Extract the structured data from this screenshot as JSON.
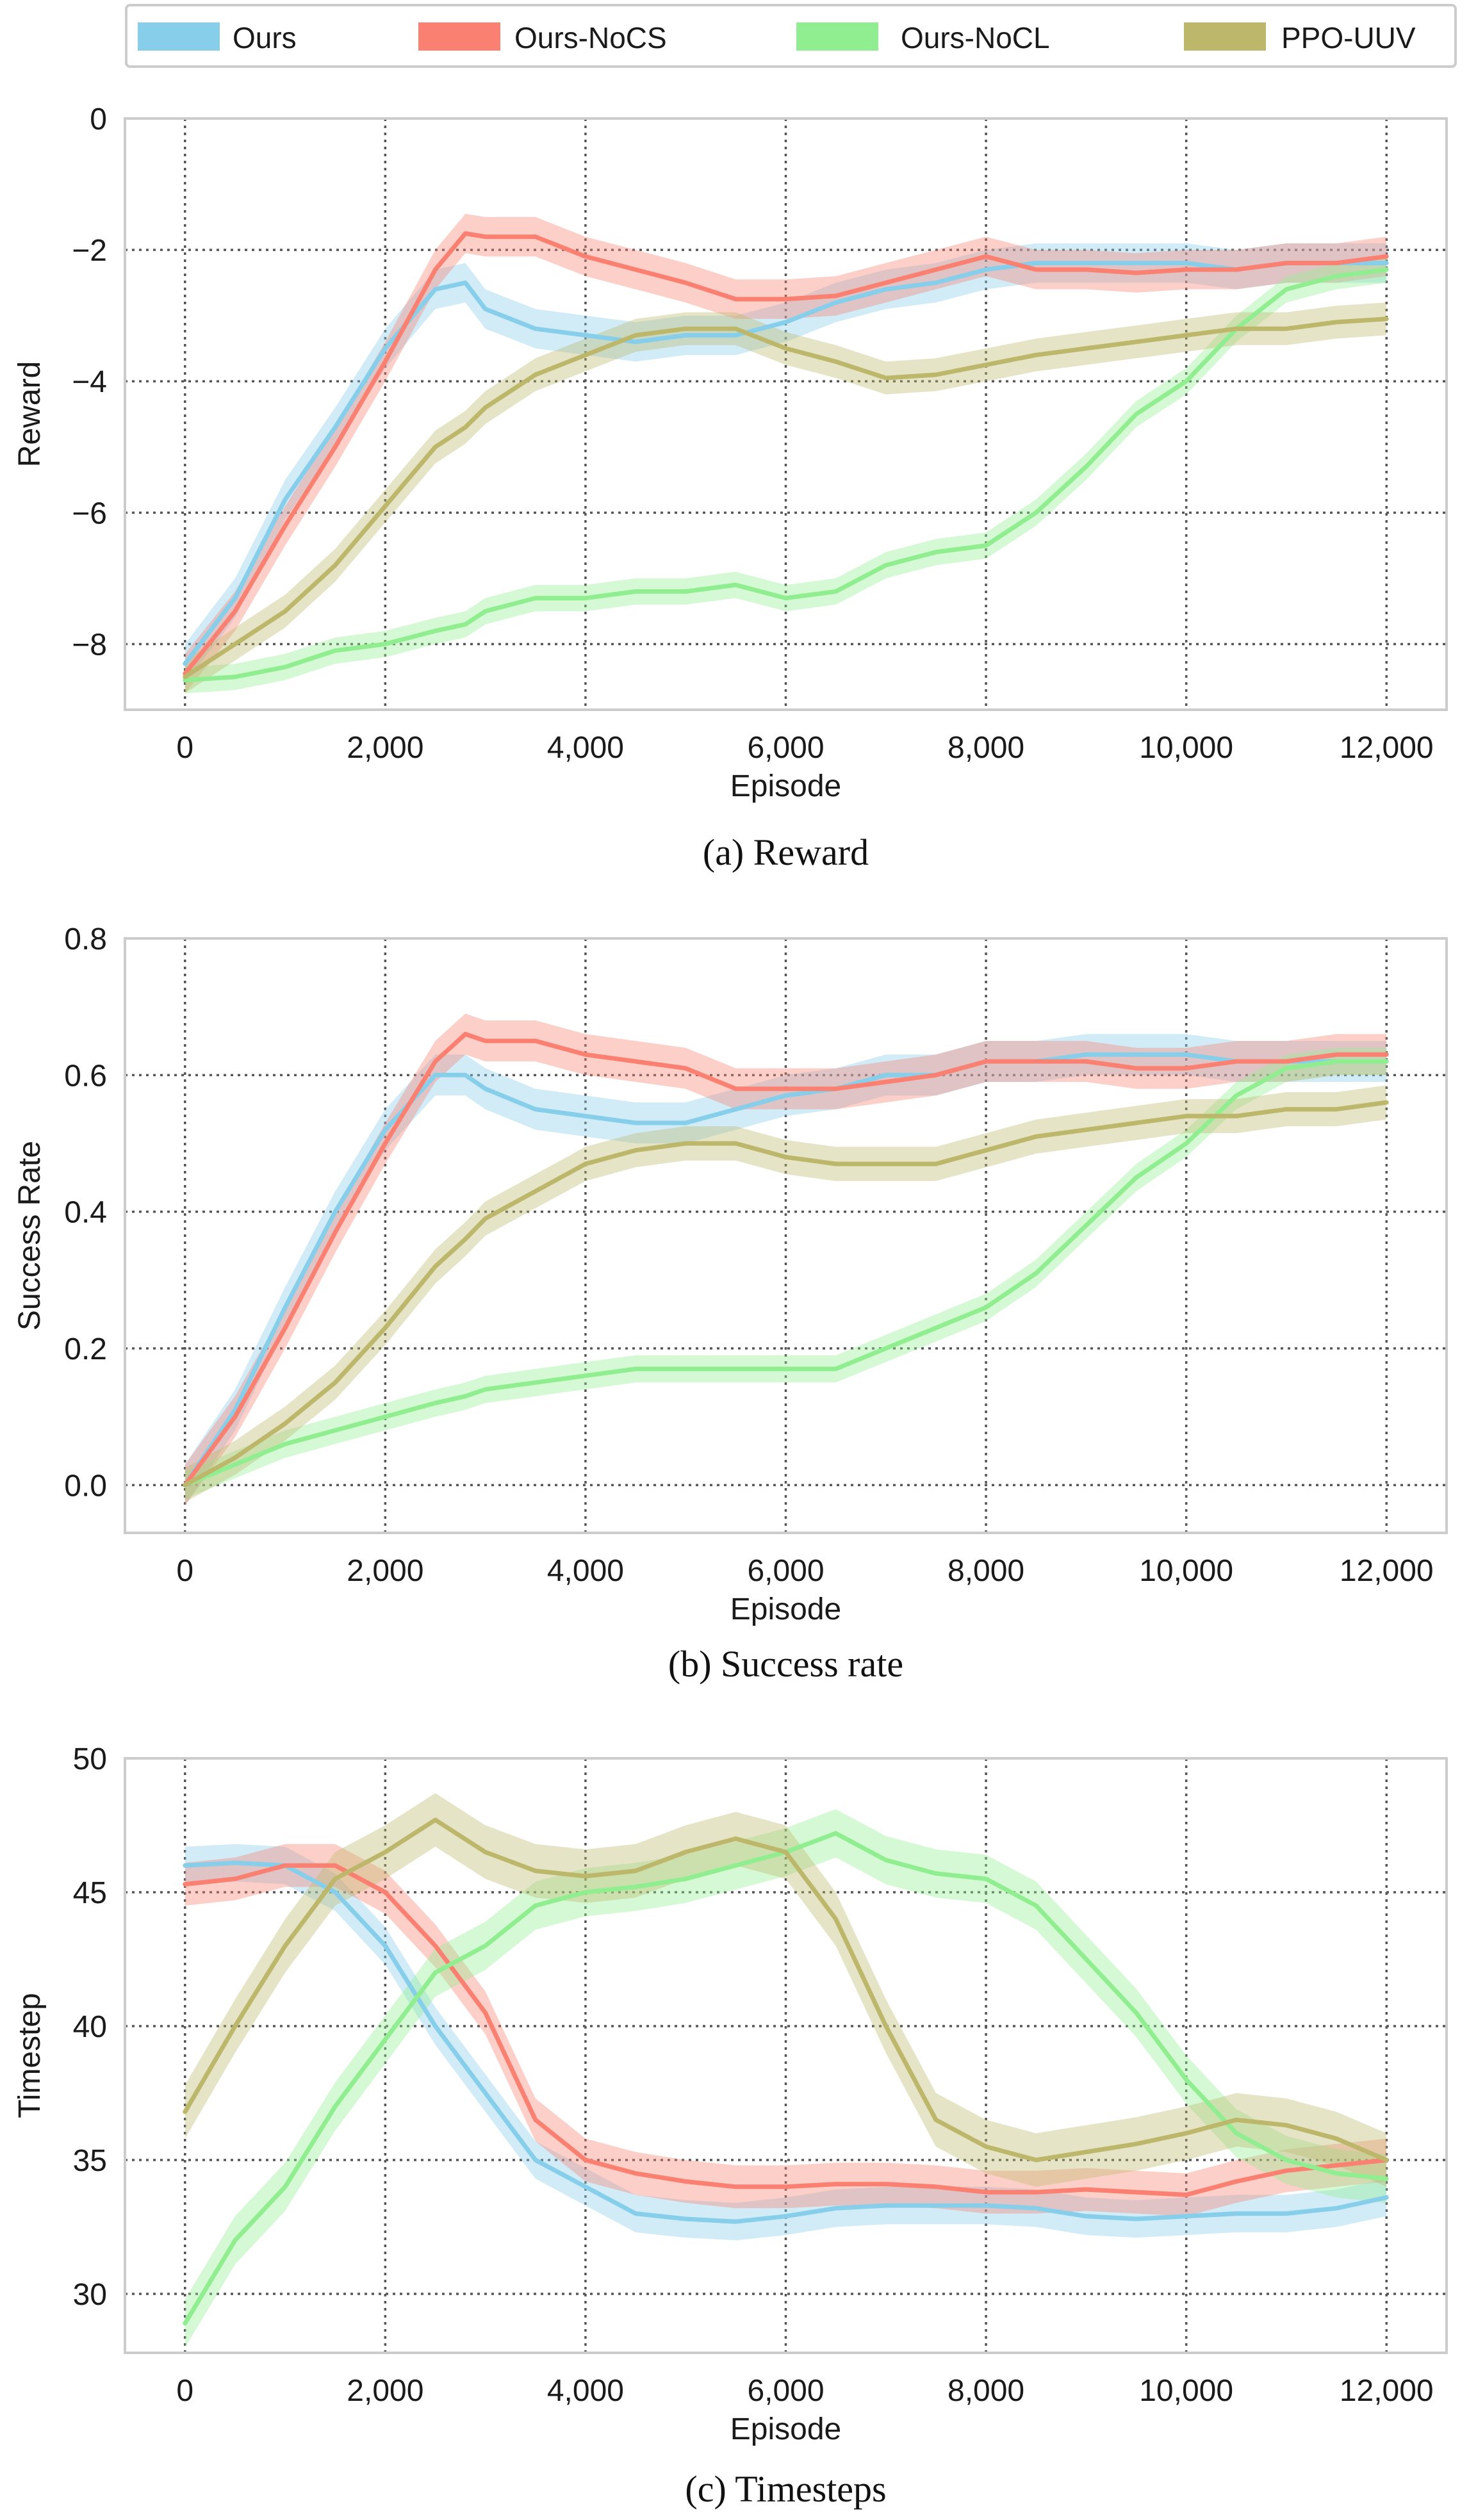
{
  "legend": {
    "entries": [
      {
        "name": "Ours",
        "color": "#87CEEB"
      },
      {
        "name": "Ours-NoCS",
        "color": "#FA8072"
      },
      {
        "name": "Ours-NoCL",
        "color": "#90EE90"
      },
      {
        "name": "PPO-UUV",
        "color": "#BDB76B"
      }
    ]
  },
  "chart_data": [
    {
      "type": "line",
      "title": "(a) Reward",
      "xlabel": "Episode",
      "ylabel": "Reward",
      "xlim": [
        -600,
        12600
      ],
      "ylim": [
        -9,
        0
      ],
      "xticks": [
        0,
        2000,
        4000,
        6000,
        8000,
        10000,
        12000
      ],
      "xtick_labels": [
        "0",
        "2,000",
        "4,000",
        "6,000",
        "8,000",
        "10,000",
        "12,000"
      ],
      "yticks": [
        0,
        -2,
        -4,
        -6,
        -8
      ],
      "ytick_labels": [
        "0",
        "−2",
        "−4",
        "−6",
        "−8"
      ],
      "grid": true,
      "x": [
        0,
        500,
        1000,
        1500,
        2000,
        2500,
        2800,
        3000,
        3500,
        4000,
        4500,
        5000,
        5500,
        6000,
        6500,
        7000,
        7500,
        8000,
        8500,
        9000,
        9500,
        10000,
        10500,
        11000,
        11500,
        12000
      ],
      "series": [
        {
          "name": "Ours",
          "band": 0.3,
          "values": [
            -8.3,
            -7.3,
            -5.8,
            -4.7,
            -3.5,
            -2.6,
            -2.5,
            -2.9,
            -3.2,
            -3.3,
            -3.4,
            -3.3,
            -3.3,
            -3.1,
            -2.8,
            -2.6,
            -2.5,
            -2.3,
            -2.2,
            -2.2,
            -2.2,
            -2.2,
            -2.3,
            -2.2,
            -2.2,
            -2.2
          ]
        },
        {
          "name": "Ours-NoCS",
          "band": 0.3,
          "values": [
            -8.45,
            -7.5,
            -6.2,
            -5.0,
            -3.7,
            -2.3,
            -1.75,
            -1.8,
            -1.8,
            -2.1,
            -2.3,
            -2.5,
            -2.75,
            -2.75,
            -2.7,
            -2.5,
            -2.3,
            -2.1,
            -2.3,
            -2.3,
            -2.35,
            -2.3,
            -2.3,
            -2.2,
            -2.2,
            -2.1
          ]
        },
        {
          "name": "Ours-NoCL",
          "band": 0.2,
          "values": [
            -8.55,
            -8.5,
            -8.35,
            -8.1,
            -8.0,
            -7.8,
            -7.7,
            -7.5,
            -7.3,
            -7.3,
            -7.2,
            -7.2,
            -7.1,
            -7.3,
            -7.2,
            -6.8,
            -6.6,
            -6.5,
            -6.0,
            -5.3,
            -4.5,
            -4.0,
            -3.2,
            -2.6,
            -2.4,
            -2.3
          ]
        },
        {
          "name": "PPO-UUV",
          "band": 0.25,
          "values": [
            -8.5,
            -8.0,
            -7.5,
            -6.8,
            -5.9,
            -5.0,
            -4.7,
            -4.4,
            -3.9,
            -3.6,
            -3.3,
            -3.2,
            -3.2,
            -3.5,
            -3.7,
            -3.95,
            -3.9,
            -3.75,
            -3.6,
            -3.5,
            -3.4,
            -3.3,
            -3.2,
            -3.2,
            -3.1,
            -3.05
          ]
        }
      ]
    },
    {
      "type": "line",
      "title": "(b) Success rate",
      "xlabel": "Episode",
      "ylabel": "Success Rate",
      "xlim": [
        -600,
        12600
      ],
      "ylim": [
        -0.07,
        0.8
      ],
      "xticks": [
        0,
        2000,
        4000,
        6000,
        8000,
        10000,
        12000
      ],
      "xtick_labels": [
        "0",
        "2,000",
        "4,000",
        "6,000",
        "8,000",
        "10,000",
        "12,000"
      ],
      "yticks": [
        0.0,
        0.2,
        0.4,
        0.6,
        0.8
      ],
      "ytick_labels": [
        "0.0",
        "0.2",
        "0.4",
        "0.6",
        "0.8"
      ],
      "grid": true,
      "x": [
        0,
        500,
        1000,
        1500,
        2000,
        2500,
        2800,
        3000,
        3500,
        4000,
        4500,
        5000,
        5500,
        6000,
        6500,
        7000,
        7500,
        8000,
        8500,
        9000,
        9500,
        10000,
        10500,
        11000,
        11500,
        12000
      ],
      "series": [
        {
          "name": "Ours",
          "band": 0.03,
          "values": [
            0.0,
            0.11,
            0.26,
            0.4,
            0.52,
            0.6,
            0.6,
            0.58,
            0.55,
            0.54,
            0.53,
            0.53,
            0.55,
            0.57,
            0.58,
            0.6,
            0.6,
            0.62,
            0.62,
            0.63,
            0.63,
            0.63,
            0.62,
            0.62,
            0.62,
            0.62
          ]
        },
        {
          "name": "Ours-NoCS",
          "band": 0.03,
          "values": [
            0.0,
            0.1,
            0.23,
            0.37,
            0.5,
            0.62,
            0.66,
            0.65,
            0.65,
            0.63,
            0.62,
            0.61,
            0.58,
            0.58,
            0.58,
            0.59,
            0.6,
            0.62,
            0.62,
            0.62,
            0.61,
            0.61,
            0.62,
            0.62,
            0.63,
            0.63
          ]
        },
        {
          "name": "Ours-NoCL",
          "band": 0.02,
          "values": [
            0.0,
            0.03,
            0.06,
            0.08,
            0.1,
            0.12,
            0.13,
            0.14,
            0.15,
            0.16,
            0.17,
            0.17,
            0.17,
            0.17,
            0.17,
            0.2,
            0.23,
            0.26,
            0.31,
            0.38,
            0.45,
            0.5,
            0.57,
            0.61,
            0.62,
            0.62
          ]
        },
        {
          "name": "PPO-UUV",
          "band": 0.025,
          "values": [
            0.0,
            0.04,
            0.09,
            0.15,
            0.23,
            0.32,
            0.36,
            0.39,
            0.43,
            0.47,
            0.49,
            0.5,
            0.5,
            0.48,
            0.47,
            0.47,
            0.47,
            0.49,
            0.51,
            0.52,
            0.53,
            0.54,
            0.54,
            0.55,
            0.55,
            0.56
          ]
        }
      ]
    },
    {
      "type": "line",
      "title": "(c) Timesteps",
      "xlabel": "Episode",
      "ylabel": "Timestep",
      "xlim": [
        -600,
        12600
      ],
      "ylim": [
        27.8,
        50
      ],
      "xticks": [
        0,
        2000,
        4000,
        6000,
        8000,
        10000,
        12000
      ],
      "xtick_labels": [
        "0",
        "2,000",
        "4,000",
        "6,000",
        "8,000",
        "10,000",
        "12,000"
      ],
      "yticks": [
        30,
        35,
        40,
        45,
        50
      ],
      "ytick_labels": [
        "30",
        "35",
        "40",
        "45",
        "50"
      ],
      "grid": true,
      "x": [
        0,
        500,
        1000,
        1500,
        2000,
        2500,
        3000,
        3500,
        4000,
        4500,
        5000,
        5500,
        6000,
        6500,
        7000,
        7500,
        8000,
        8500,
        9000,
        9500,
        10000,
        10500,
        11000,
        11500,
        12000
      ],
      "series": [
        {
          "name": "Ours",
          "band": 0.7,
          "values": [
            46.0,
            46.1,
            46.0,
            45.0,
            43.0,
            40.0,
            37.5,
            35.0,
            34.0,
            33.0,
            32.8,
            32.7,
            32.9,
            33.2,
            33.3,
            33.3,
            33.3,
            33.2,
            32.9,
            32.8,
            32.9,
            33.0,
            33.0,
            33.2,
            33.6
          ]
        },
        {
          "name": "Ours-NoCS",
          "band": 0.8,
          "values": [
            45.3,
            45.5,
            46.0,
            46.0,
            45.0,
            43.0,
            40.5,
            36.5,
            35.0,
            34.5,
            34.2,
            34.0,
            34.0,
            34.1,
            34.1,
            34.0,
            33.8,
            33.8,
            33.9,
            33.8,
            33.7,
            34.2,
            34.6,
            34.8,
            35.0
          ]
        },
        {
          "name": "Ours-NoCL",
          "band": 0.9,
          "values": [
            28.9,
            32.0,
            34.0,
            37.0,
            39.5,
            42.0,
            43.0,
            44.5,
            45.0,
            45.2,
            45.5,
            46.0,
            46.5,
            47.2,
            46.2,
            45.7,
            45.5,
            44.5,
            42.5,
            40.5,
            38.0,
            36.0,
            35.0,
            34.5,
            34.3
          ]
        },
        {
          "name": "PPO-UUV",
          "band": 1.0,
          "values": [
            36.8,
            40.0,
            43.0,
            45.5,
            46.5,
            47.7,
            46.5,
            45.8,
            45.6,
            45.8,
            46.5,
            47.0,
            46.5,
            44.0,
            40.0,
            36.5,
            35.5,
            35.0,
            35.3,
            35.6,
            36.0,
            36.5,
            36.3,
            35.8,
            35.0
          ]
        }
      ]
    }
  ]
}
